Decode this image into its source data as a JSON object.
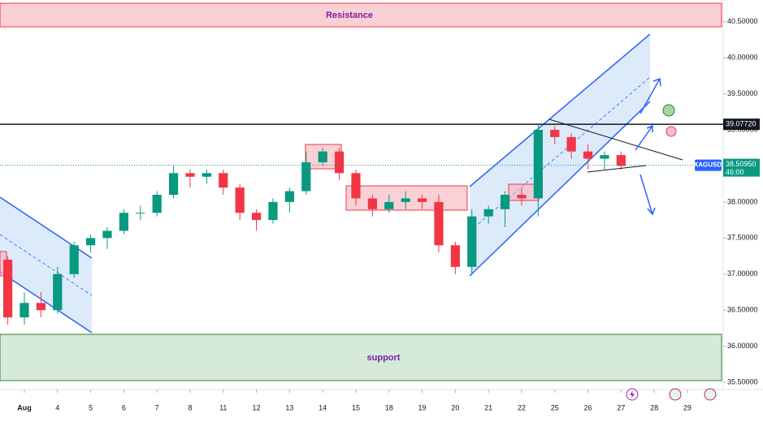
{
  "chart_data": {
    "type": "candlestick",
    "annotations": [
      "Resistance",
      "support"
    ],
    "symbol": "XAGUSD",
    "countdown": "46:00",
    "up_color": "#089981",
    "down_color": "#f23645",
    "price_line": {
      "value": 39.0772,
      "label": "39.07720"
    },
    "last_price": {
      "value": 38.5095,
      "label": "38.50950"
    },
    "ylim": [
      35.4,
      40.8
    ],
    "yticks": [
      {
        "value": 35.5,
        "label": "35.50000"
      },
      {
        "value": 36,
        "label": "36.00000"
      },
      {
        "value": 36.5,
        "label": "36.50000"
      },
      {
        "value": 37,
        "label": "37.00000"
      },
      {
        "value": 37.5,
        "label": "37.50000"
      },
      {
        "value": 38,
        "label": "38.00000"
      },
      {
        "value": 38.5,
        "label": "38.50000"
      },
      {
        "value": 39,
        "label": "39.00000"
      },
      {
        "value": 39.5,
        "label": "39.50000"
      },
      {
        "value": 40,
        "label": "40.00000"
      },
      {
        "value": 40.5,
        "label": "40.50000"
      }
    ],
    "xlim": [
      -0.735,
      21.08
    ],
    "xticks": [
      {
        "value": 0,
        "label": "Aug"
      },
      {
        "value": 1,
        "label": "4"
      },
      {
        "value": 2,
        "label": "5"
      },
      {
        "value": 3,
        "label": "6"
      },
      {
        "value": 4,
        "label": "7"
      },
      {
        "value": 5,
        "label": "8"
      },
      {
        "value": 6,
        "label": "11"
      },
      {
        "value": 7,
        "label": "12"
      },
      {
        "value": 8,
        "label": "13"
      },
      {
        "value": 9,
        "label": "14"
      },
      {
        "value": 10,
        "label": "15"
      },
      {
        "value": 11,
        "label": "18"
      },
      {
        "value": 12,
        "label": "19"
      },
      {
        "value": 13,
        "label": "20"
      },
      {
        "value": 14,
        "label": "21"
      },
      {
        "value": 15,
        "label": "22"
      },
      {
        "value": 16,
        "label": "25"
      },
      {
        "value": 17,
        "label": "26"
      },
      {
        "value": 18,
        "label": "27"
      },
      {
        "value": 19,
        "label": "28"
      },
      {
        "value": 20,
        "label": "29"
      }
    ],
    "x": [
      -0.5,
      0,
      0.5,
      1,
      1.5,
      2,
      2.5,
      3,
      3.5,
      4,
      4.5,
      5,
      5.5,
      6,
      6.5,
      7,
      7.5,
      8,
      8.5,
      9,
      9.5,
      10,
      10.5,
      11,
      11.5,
      12,
      12.5,
      13,
      13.5,
      14,
      14.5,
      15,
      15.5,
      16,
      16.5,
      17,
      17.5,
      18
    ],
    "open": [
      37.2,
      36.4,
      36.6,
      36.5,
      37.0,
      37.4,
      37.5,
      37.6,
      37.85,
      37.85,
      38.1,
      38.4,
      38.35,
      38.4,
      38.2,
      37.85,
      37.75,
      38.0,
      38.15,
      38.55,
      38.7,
      38.4,
      38.05,
      37.9,
      38.0,
      38.05,
      38.0,
      37.4,
      37.1,
      37.8,
      37.9,
      38.1,
      38.05,
      39.0,
      38.9,
      38.7,
      38.6,
      38.65
    ],
    "high": [
      37.25,
      36.75,
      36.75,
      37.1,
      37.45,
      37.55,
      37.65,
      37.9,
      37.95,
      38.15,
      38.5,
      38.45,
      38.45,
      38.45,
      38.25,
      37.9,
      38.05,
      38.2,
      38.7,
      38.75,
      38.75,
      38.45,
      38.1,
      38.1,
      38.15,
      38.1,
      38.1,
      37.45,
      37.9,
      37.95,
      38.15,
      38.2,
      39.07,
      39.05,
      38.95,
      38.8,
      38.7,
      38.7
    ],
    "low": [
      36.3,
      36.3,
      36.4,
      36.45,
      36.95,
      37.3,
      37.35,
      37.55,
      37.75,
      37.8,
      38.05,
      38.2,
      38.25,
      38.1,
      37.75,
      37.6,
      37.7,
      37.85,
      38.1,
      38.5,
      38.3,
      37.95,
      37.8,
      37.85,
      37.9,
      37.9,
      37.3,
      37.0,
      37.0,
      37.7,
      37.65,
      37.95,
      37.8,
      38.8,
      38.6,
      38.45,
      38.45,
      38.45
    ],
    "close": [
      36.4,
      36.6,
      36.5,
      37.0,
      37.4,
      37.5,
      37.6,
      37.85,
      37.85,
      38.1,
      38.4,
      38.35,
      38.4,
      38.2,
      37.85,
      37.75,
      38.0,
      38.15,
      38.55,
      38.7,
      38.4,
      38.05,
      37.9,
      38.0,
      38.05,
      38.0,
      37.4,
      37.1,
      37.8,
      37.9,
      38.1,
      38.05,
      39.0,
      38.9,
      38.7,
      38.6,
      38.65,
      38.5
    ]
  }
}
